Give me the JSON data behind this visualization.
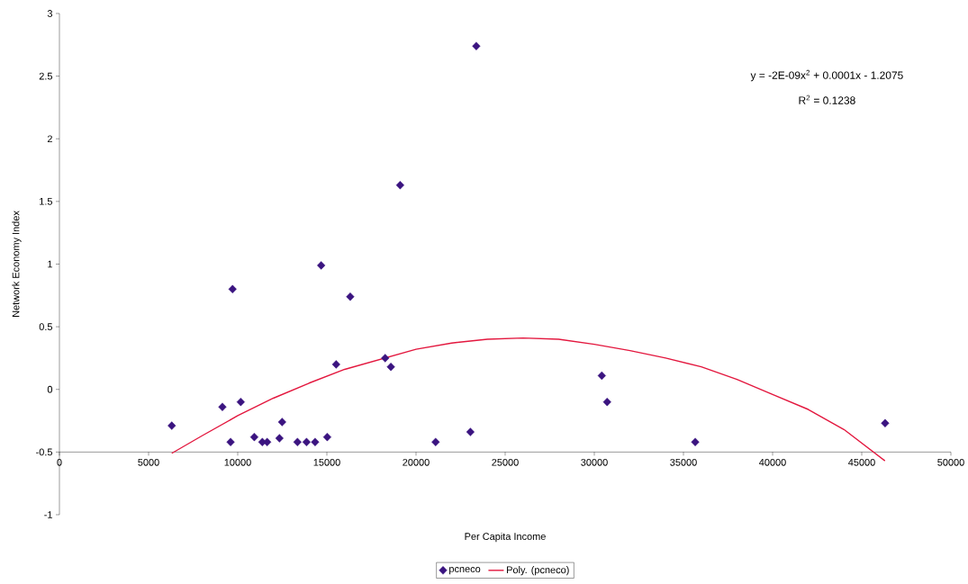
{
  "chart_data": {
    "type": "scatter",
    "xlabel": "Per Capita Income",
    "ylabel": "Network Economy Index",
    "annotations": [
      "y = -2E-09x$^{2}$ + 0.0001x - 1.2075",
      "R$^{2}$ = 0.1238"
    ],
    "xlim": [
      0,
      50000
    ],
    "ylim": [
      -1,
      3
    ],
    "xticks": [
      0,
      5000,
      10000,
      15000,
      20000,
      25000,
      30000,
      35000,
      40000,
      45000,
      50000
    ],
    "yticks": [
      -1,
      -0.5,
      0,
      0.5,
      1,
      1.5,
      2,
      2.5,
      3
    ],
    "legend": "bottom",
    "series": [
      {
        "name": "pcneco",
        "marker": "diamond",
        "color": "#3b1480",
        "x": [
          6300,
          9710,
          9140,
          9600,
          10170,
          10930,
          11380,
          11650,
          12340,
          12490,
          13350,
          13860,
          14340,
          15020,
          15520,
          16310,
          18270,
          18590,
          23050,
          21100,
          23380,
          19110,
          14680,
          30420,
          30720,
          35660,
          46310
        ],
        "values": [
          -0.29,
          0.8,
          -0.14,
          -0.42,
          -0.1,
          -0.38,
          -0.42,
          -0.42,
          -0.39,
          -0.26,
          -0.42,
          -0.42,
          -0.42,
          -0.38,
          0.2,
          0.74,
          0.25,
          0.18,
          -0.34,
          -0.42,
          2.74,
          1.63,
          0.99,
          0.11,
          -0.1,
          -0.42,
          -0.27
        ]
      },
      {
        "name": "Poly. (pcneco)",
        "type": "line",
        "marker": "none",
        "color": "#e3173e",
        "x": [
          6300,
          8000,
          10000,
          12000,
          14000,
          16000,
          18000,
          20000,
          22000,
          24000,
          26000,
          28000,
          30000,
          32000,
          34000,
          36000,
          38000,
          40000,
          42000,
          44000,
          46300
        ],
        "values": [
          -0.51,
          -0.37,
          -0.21,
          -0.07,
          0.05,
          0.16,
          0.24,
          0.32,
          0.37,
          0.4,
          0.41,
          0.4,
          0.36,
          0.31,
          0.25,
          0.18,
          0.08,
          -0.04,
          -0.16,
          -0.32,
          -0.57
        ]
      }
    ]
  }
}
